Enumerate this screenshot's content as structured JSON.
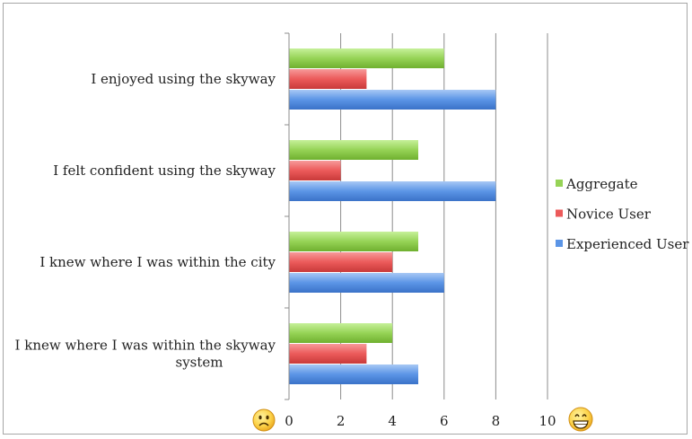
{
  "chart_data": {
    "type": "bar",
    "orientation": "horizontal",
    "categories": [
      [
        "I enjoyed using the skyway"
      ],
      [
        "I felt confident using the skyway"
      ],
      [
        "I knew where I was within the city"
      ],
      [
        "I knew where I was within the skyway",
        "system"
      ]
    ],
    "series": [
      {
        "name": "Aggregate",
        "values": [
          6,
          5,
          5,
          4
        ],
        "color": "#96d356"
      },
      {
        "name": "Novice User",
        "values": [
          3,
          2,
          4,
          3
        ],
        "color": "#ec5a5a"
      },
      {
        "name": "Experienced User",
        "values": [
          8,
          8,
          6,
          5
        ],
        "color": "#5b95e6"
      }
    ],
    "xlim": [
      0,
      10
    ],
    "xticks": [
      "0",
      "2",
      "4",
      "6",
      "8",
      "10"
    ],
    "grid": true,
    "legend": "right",
    "axis_icons": {
      "left": "sad-face-icon",
      "right": "grinning-face-icon"
    }
  }
}
